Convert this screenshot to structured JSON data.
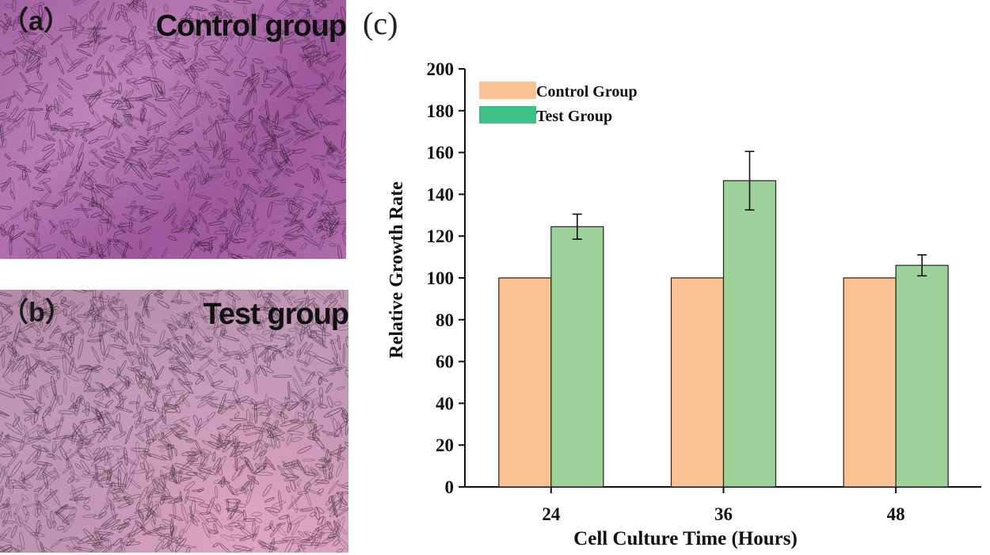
{
  "panels": {
    "a": {
      "letter": "（a）",
      "label": "Control group"
    },
    "b": {
      "letter": "（b）",
      "label": "Test group"
    },
    "c": {
      "letter": "(c)"
    }
  },
  "colors": {
    "control": "#fbc293",
    "test": "#9dd39b",
    "control_legend": "#fbc293",
    "test_legend": "#3fbf86"
  },
  "chart_data": {
    "type": "bar",
    "title": "",
    "xlabel": "Cell Culture Time (Hours)",
    "ylabel": "Relative Growth Rate",
    "ylim": [
      0,
      200
    ],
    "yticks": [
      0,
      20,
      40,
      60,
      80,
      100,
      120,
      140,
      160,
      180,
      200
    ],
    "categories": [
      "24",
      "36",
      "48"
    ],
    "series": [
      {
        "name": "Control Group",
        "values": [
          100,
          100,
          100
        ],
        "errors": [
          0,
          0,
          0
        ]
      },
      {
        "name": "Test Group",
        "values": [
          124.5,
          146.5,
          106
        ],
        "errors": [
          6,
          14,
          5
        ]
      }
    ],
    "legend_position": "top-left",
    "grid": false
  }
}
